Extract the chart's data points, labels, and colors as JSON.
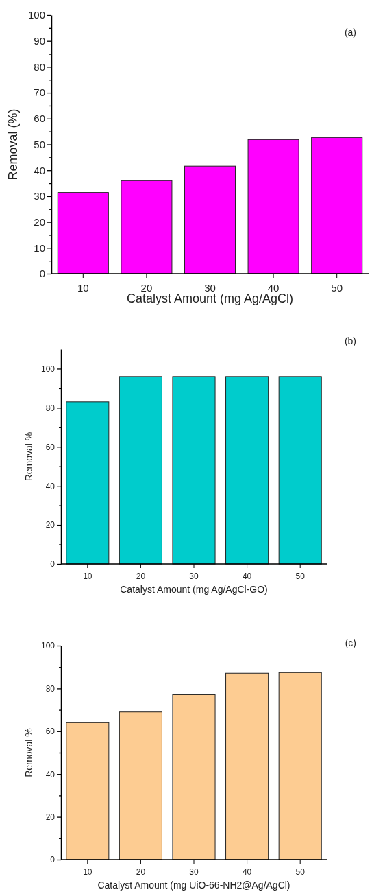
{
  "chart_data": [
    {
      "type": "bar",
      "xlabel": "Catalyst Amount (mg Ag/AgCl)",
      "ylabel": "Removal (%)",
      "annotations": [
        "(a)"
      ],
      "categories": [
        "10",
        "20",
        "30",
        "40",
        "50"
      ],
      "values": [
        31.4,
        36,
        41.6,
        51.9,
        52.7
      ],
      "color": "#ff00ff",
      "ylim": [
        0,
        100
      ],
      "yticks": [
        0,
        {
          "value": 5,
          "label": null
        },
        10,
        {
          "value": 15,
          "label": null
        },
        20,
        {
          "value": 25,
          "label": null
        },
        30,
        {
          "value": 35,
          "label": null
        },
        40,
        {
          "value": 45,
          "label": null
        },
        50,
        {
          "value": 55,
          "label": null
        },
        60,
        {
          "value": 65,
          "label": null
        },
        70,
        {
          "value": 75,
          "label": null
        },
        80,
        {
          "value": 85,
          "label": null
        },
        90,
        {
          "value": 95,
          "label": null
        },
        100
      ]
    },
    {
      "type": "bar",
      "xlabel": "Catalyst Amount (mg Ag/AgCl-GO)",
      "ylabel": "Removal %",
      "annotations": [
        "(b)"
      ],
      "categories": [
        "10",
        "20",
        "30",
        "40",
        "50"
      ],
      "values": [
        83,
        96,
        96,
        96,
        96
      ],
      "color": "#00cccc",
      "ylim": [
        0,
        110
      ],
      "yticks": [
        0,
        {
          "value": 10,
          "label": null
        },
        20,
        {
          "value": 30,
          "label": null
        },
        40,
        {
          "value": 50,
          "label": null
        },
        60,
        {
          "value": 70,
          "label": null
        },
        80,
        {
          "value": 90,
          "label": null
        },
        100
      ]
    },
    {
      "type": "bar",
      "xlabel": "Catalyst Amount (mg UiO-66-NH2@Ag/AgCl)",
      "ylabel": "Removal %",
      "annotations": [
        "(c)"
      ],
      "categories": [
        "10",
        "20",
        "30",
        "40",
        "50"
      ],
      "values": [
        64,
        69,
        77.1,
        87.1,
        87.4
      ],
      "color": "#fdcc92",
      "ylim": [
        0,
        100
      ],
      "yticks": [
        0,
        {
          "value": 10,
          "label": null
        },
        20,
        {
          "value": 30,
          "label": null
        },
        40,
        {
          "value": 50,
          "label": null
        },
        60,
        {
          "value": 70,
          "label": null
        },
        80,
        {
          "value": 90,
          "label": null
        },
        100
      ]
    }
  ]
}
